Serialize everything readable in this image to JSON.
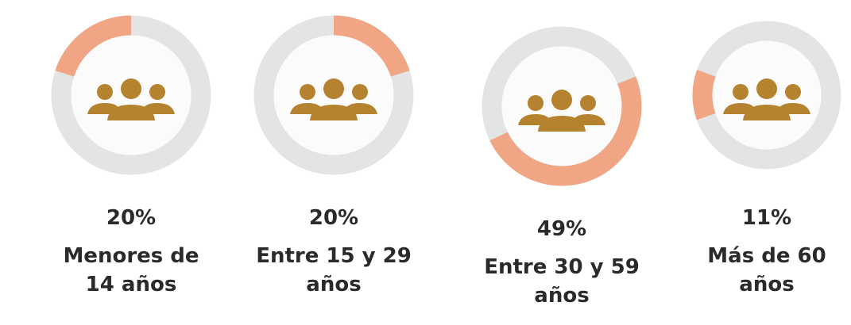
{
  "chart_data": [
    {
      "type": "donut",
      "categories": [
        "Menores de 14 años"
      ],
      "values": [
        20
      ],
      "value_labels": [
        "20%"
      ],
      "color": "#f0a585",
      "track_color": "#e3e5e4",
      "icon_color": "#b5832f"
    },
    {
      "type": "donut",
      "categories": [
        "Entre 15 y 29 años"
      ],
      "values": [
        20
      ],
      "value_labels": [
        "20%"
      ],
      "color": "#f0a585",
      "track_color": "#e3e5e4",
      "icon_color": "#b5832f"
    },
    {
      "type": "donut",
      "categories": [
        "Entre 30 y 59 años"
      ],
      "values": [
        49
      ],
      "value_labels": [
        "49%"
      ],
      "color": "#f0a585",
      "track_color": "#e3e5e4",
      "icon_color": "#b5832f"
    },
    {
      "type": "donut",
      "categories": [
        "Más de 60 años"
      ],
      "values": [
        11
      ],
      "value_labels": [
        "11%"
      ],
      "color": "#f0a585",
      "track_color": "#e3e5e4",
      "icon_color": "#b5832f"
    }
  ]
}
